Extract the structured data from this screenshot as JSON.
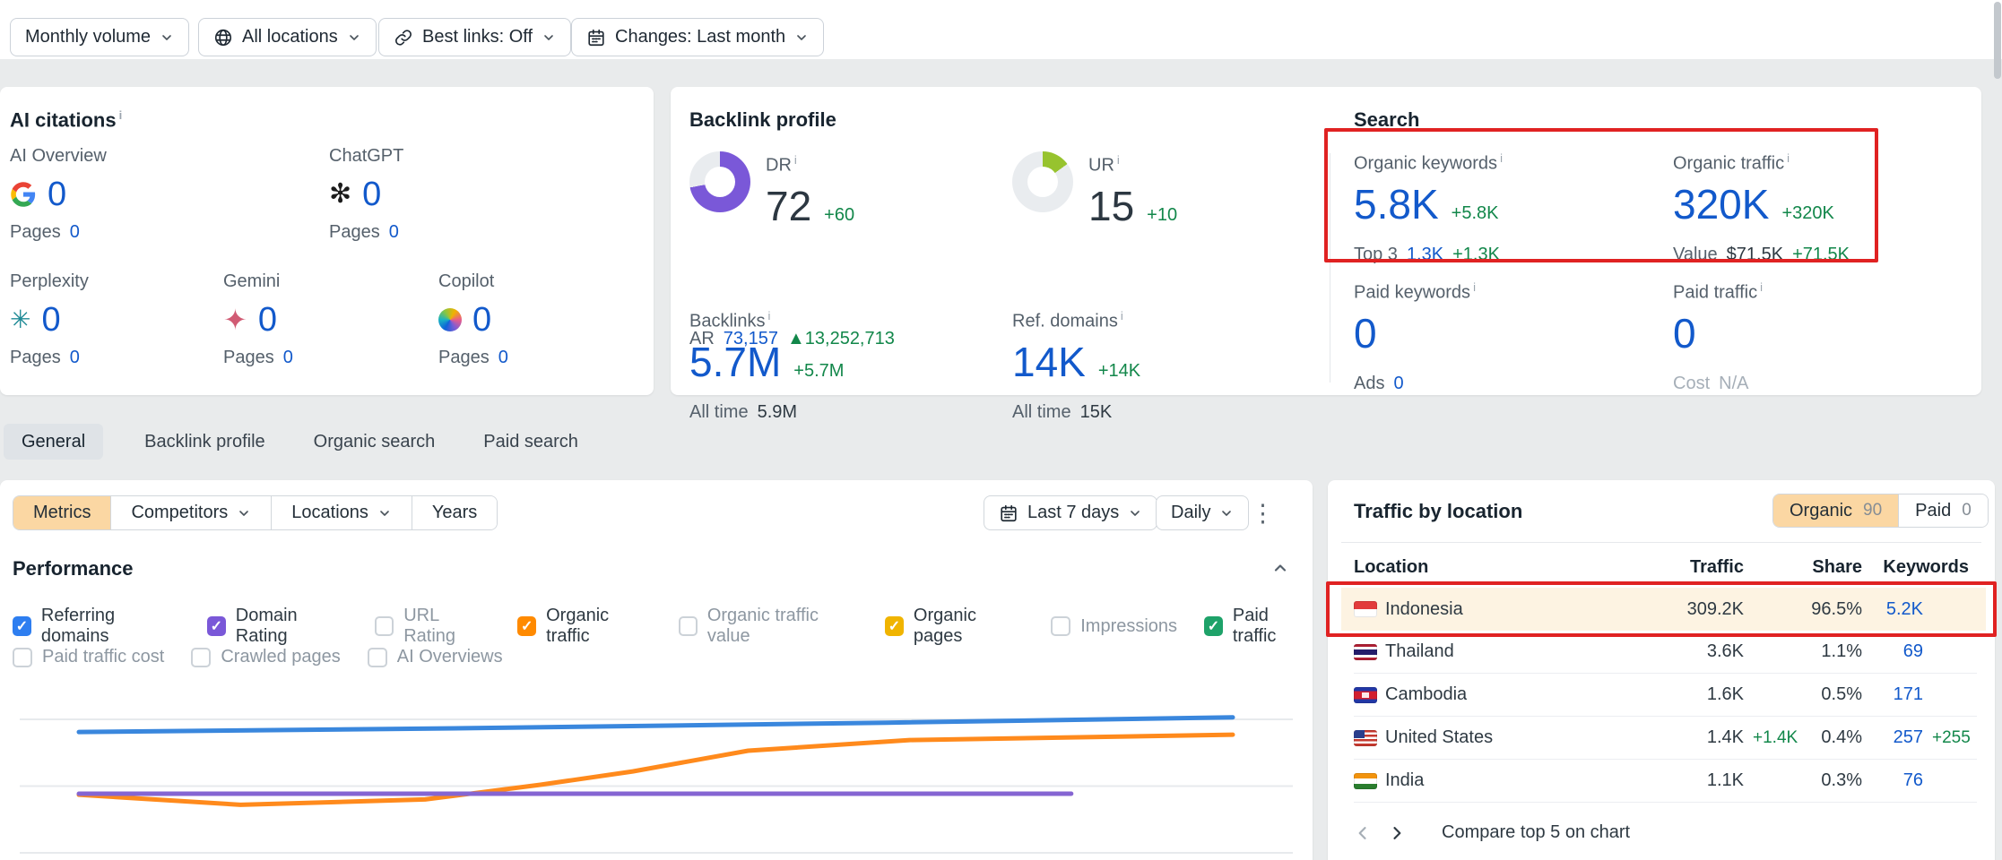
{
  "toolbar": {
    "items": [
      {
        "label": "Monthly volume",
        "icon": null
      },
      {
        "label": "All locations",
        "icon": "globe"
      },
      {
        "label": "Best links: Off",
        "icon": "link"
      },
      {
        "label": "Changes: Last month",
        "icon": "calendar"
      }
    ]
  },
  "icons": {
    "info": "i",
    "kebab": "⋮",
    "chatgpt": "✻",
    "perplexity": "✳",
    "gemini": "✦"
  },
  "ai_citations": {
    "title": "AI citations",
    "stats": [
      {
        "label": "AI Overview",
        "icon": "google-logo",
        "value": "0",
        "pages_label": "Pages",
        "pages": "0"
      },
      {
        "label": "ChatGPT",
        "icon": "chatgpt-logo",
        "value": "0",
        "pages_label": "Pages",
        "pages": "0"
      },
      {
        "label": "Perplexity",
        "icon": "perplexity-logo",
        "value": "0",
        "pages_label": "Pages",
        "pages": "0"
      },
      {
        "label": "Gemini",
        "icon": "gemini-logo",
        "value": "0",
        "pages_label": "Pages",
        "pages": "0"
      },
      {
        "label": "Copilot",
        "icon": "copilot-logo",
        "value": "0",
        "pages_label": "Pages",
        "pages": "0"
      }
    ]
  },
  "backlink_profile": {
    "title": "Backlink profile",
    "dr": {
      "label": "DR",
      "value": "72",
      "delta": "+60",
      "percent": 72,
      "color": "#7a58d8"
    },
    "ar": {
      "label": "AR",
      "value": "73,157",
      "delta": "▲13,252,713"
    },
    "ur": {
      "label": "UR",
      "value": "15",
      "delta": "+10",
      "percent": 15,
      "color": "#97c32e"
    },
    "backlinks": {
      "label": "Backlinks",
      "value": "5.7M",
      "delta": "+5.7M",
      "all_time_label": "All time",
      "all_time": "5.9M"
    },
    "ref_domains": {
      "label": "Ref. domains",
      "value": "14K",
      "delta": "+14K",
      "all_time_label": "All time",
      "all_time": "15K"
    }
  },
  "search": {
    "title": "Search",
    "organic_keywords": {
      "label": "Organic keywords",
      "value": "5.8K",
      "delta": "+5.8K",
      "sub_label": "Top 3",
      "sub_value": "1.3K",
      "sub_delta": "+1.3K"
    },
    "organic_traffic": {
      "label": "Organic traffic",
      "value": "320K",
      "delta": "+320K",
      "sub_label": "Value",
      "sub_value": "$71.5K",
      "sub_delta": "+71.5K"
    },
    "paid_keywords": {
      "label": "Paid keywords",
      "value": "0",
      "sub_label": "Ads",
      "sub_value": "0"
    },
    "paid_traffic": {
      "label": "Paid traffic",
      "value": "0",
      "sub_label": "Cost",
      "sub_value": "N/A"
    }
  },
  "tabs": [
    {
      "label": "General",
      "active": true
    },
    {
      "label": "Backlink profile",
      "active": false
    },
    {
      "label": "Organic search",
      "active": false
    },
    {
      "label": "Paid search",
      "active": false
    }
  ],
  "metrics_bar": {
    "segments": [
      {
        "label": "Metrics",
        "active": true,
        "caret": false
      },
      {
        "label": "Competitors",
        "active": false,
        "caret": true
      },
      {
        "label": "Locations",
        "active": false,
        "caret": true
      },
      {
        "label": "Years",
        "active": false,
        "caret": false
      }
    ],
    "date_range": "Last 7 days",
    "granularity": "Daily"
  },
  "performance": {
    "title": "Performance",
    "checkboxes": [
      {
        "label": "Referring domains",
        "checked": true,
        "color": "#2e7ef0"
      },
      {
        "label": "Domain Rating",
        "checked": true,
        "color": "#7a58d8"
      },
      {
        "label": "URL Rating",
        "checked": false,
        "color": null
      },
      {
        "label": "Organic traffic",
        "checked": true,
        "color": "#ff8a00"
      },
      {
        "label": "Organic traffic value",
        "checked": false,
        "color": null
      },
      {
        "label": "Organic pages",
        "checked": true,
        "color": "#f0b400"
      },
      {
        "label": "Impressions",
        "checked": false,
        "color": null
      },
      {
        "label": "Paid traffic",
        "checked": true,
        "color": "#1ea269"
      },
      {
        "label": "Paid traffic cost",
        "checked": false,
        "color": null
      },
      {
        "label": "Crawled pages",
        "checked": false,
        "color": null
      },
      {
        "label": "AI Overviews",
        "checked": false,
        "color": null
      }
    ]
  },
  "chart_data": {
    "type": "line",
    "title": "Performance",
    "xlabel": "Last 7 days, daily",
    "ylabel": "",
    "grid": true,
    "gridlines": [
      0,
      50,
      100
    ],
    "ylim": [
      0,
      110
    ],
    "legend_position": "none",
    "series": [
      {
        "name": "Referring domains",
        "color": "#3a87dd",
        "points": [
          [
            0,
            90.5
          ],
          [
            35,
            93.5
          ],
          [
            70,
            97.5
          ],
          [
            100,
            101.5
          ]
        ]
      },
      {
        "name": "Organic traffic",
        "color": "#ff8a1c",
        "points": [
          [
            0,
            43.5
          ],
          [
            14,
            36
          ],
          [
            30,
            40
          ],
          [
            40,
            51
          ],
          [
            48,
            61
          ],
          [
            58,
            76.5
          ],
          [
            72,
            84.5
          ],
          [
            100,
            88.5
          ]
        ]
      },
      {
        "name": "Domain Rating",
        "color": "#8565d2",
        "points": [
          [
            0,
            44.3
          ],
          [
            86,
            44.3
          ]
        ]
      }
    ]
  },
  "traffic_by_location": {
    "title": "Traffic by location",
    "toggle": [
      {
        "label": "Organic",
        "count": "90",
        "active": true
      },
      {
        "label": "Paid",
        "count": "0",
        "active": false
      }
    ],
    "columns": {
      "location": "Location",
      "traffic": "Traffic",
      "share": "Share",
      "keywords": "Keywords"
    },
    "rows": [
      {
        "country": "Indonesia",
        "traffic": "309.2K",
        "traffic_delta": "",
        "share": "96.5%",
        "keywords": "5.2K",
        "keywords_delta": "",
        "highlighted": true
      },
      {
        "country": "Thailand",
        "traffic": "3.6K",
        "traffic_delta": "",
        "share": "1.1%",
        "keywords": "69",
        "keywords_delta": "",
        "highlighted": false
      },
      {
        "country": "Cambodia",
        "traffic": "1.6K",
        "traffic_delta": "",
        "share": "0.5%",
        "keywords": "171",
        "keywords_delta": "",
        "highlighted": false
      },
      {
        "country": "United States",
        "traffic": "1.4K",
        "traffic_delta": "+1.4K",
        "share": "0.4%",
        "keywords": "257",
        "keywords_delta": "+255",
        "highlighted": false
      },
      {
        "country": "India",
        "traffic": "1.1K",
        "traffic_delta": "",
        "share": "0.3%",
        "keywords": "76",
        "keywords_delta": "",
        "highlighted": false
      }
    ],
    "footer": {
      "compare_label": "Compare top 5 on chart"
    }
  },
  "annotations": {
    "color": "#e02222"
  }
}
